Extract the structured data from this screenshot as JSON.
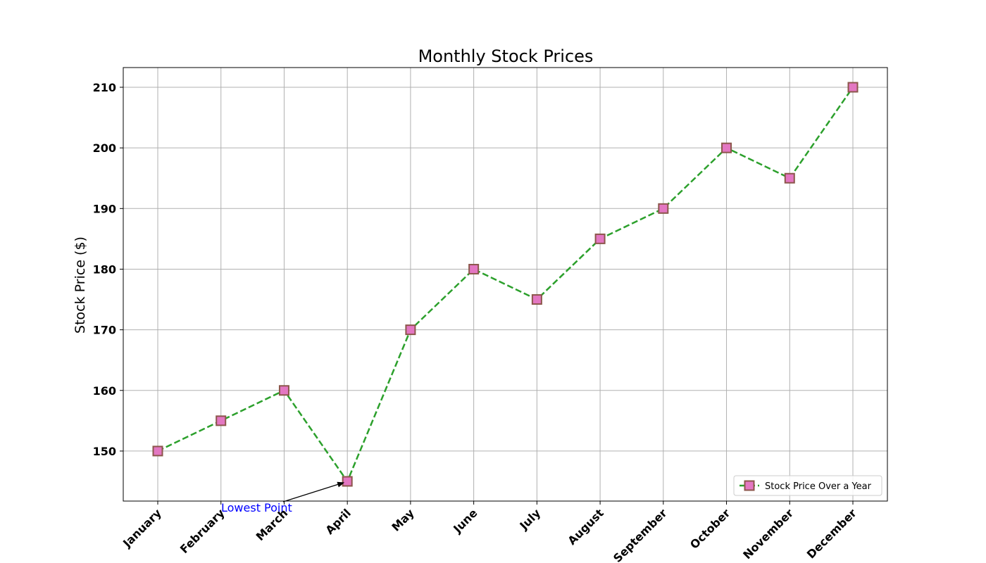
{
  "chart_data": {
    "type": "line",
    "title": "Monthly Stock Prices",
    "xlabel": "",
    "ylabel": "Stock Price ($)",
    "categories": [
      "January",
      "February",
      "March",
      "April",
      "May",
      "June",
      "July",
      "August",
      "September",
      "October",
      "November",
      "December"
    ],
    "series": [
      {
        "name": "Stock Price Over a Year",
        "values": [
          150,
          155,
          160,
          145,
          170,
          180,
          175,
          185,
          190,
          200,
          195,
          210
        ],
        "line_color": "#2ca02c",
        "line_style": "dashed",
        "marker": "square",
        "marker_face": "#e377c2",
        "marker_edge": "#8c564b"
      }
    ],
    "ylim": [
      141.75,
      213.25
    ],
    "yticks": [
      150,
      160,
      170,
      180,
      190,
      200,
      210
    ],
    "grid": true,
    "legend": {
      "placement": "lower-right"
    },
    "annotations": [
      {
        "text": "Lowest Point",
        "target_category": "April",
        "target_value": 145,
        "color": "#0000ff"
      }
    ]
  }
}
